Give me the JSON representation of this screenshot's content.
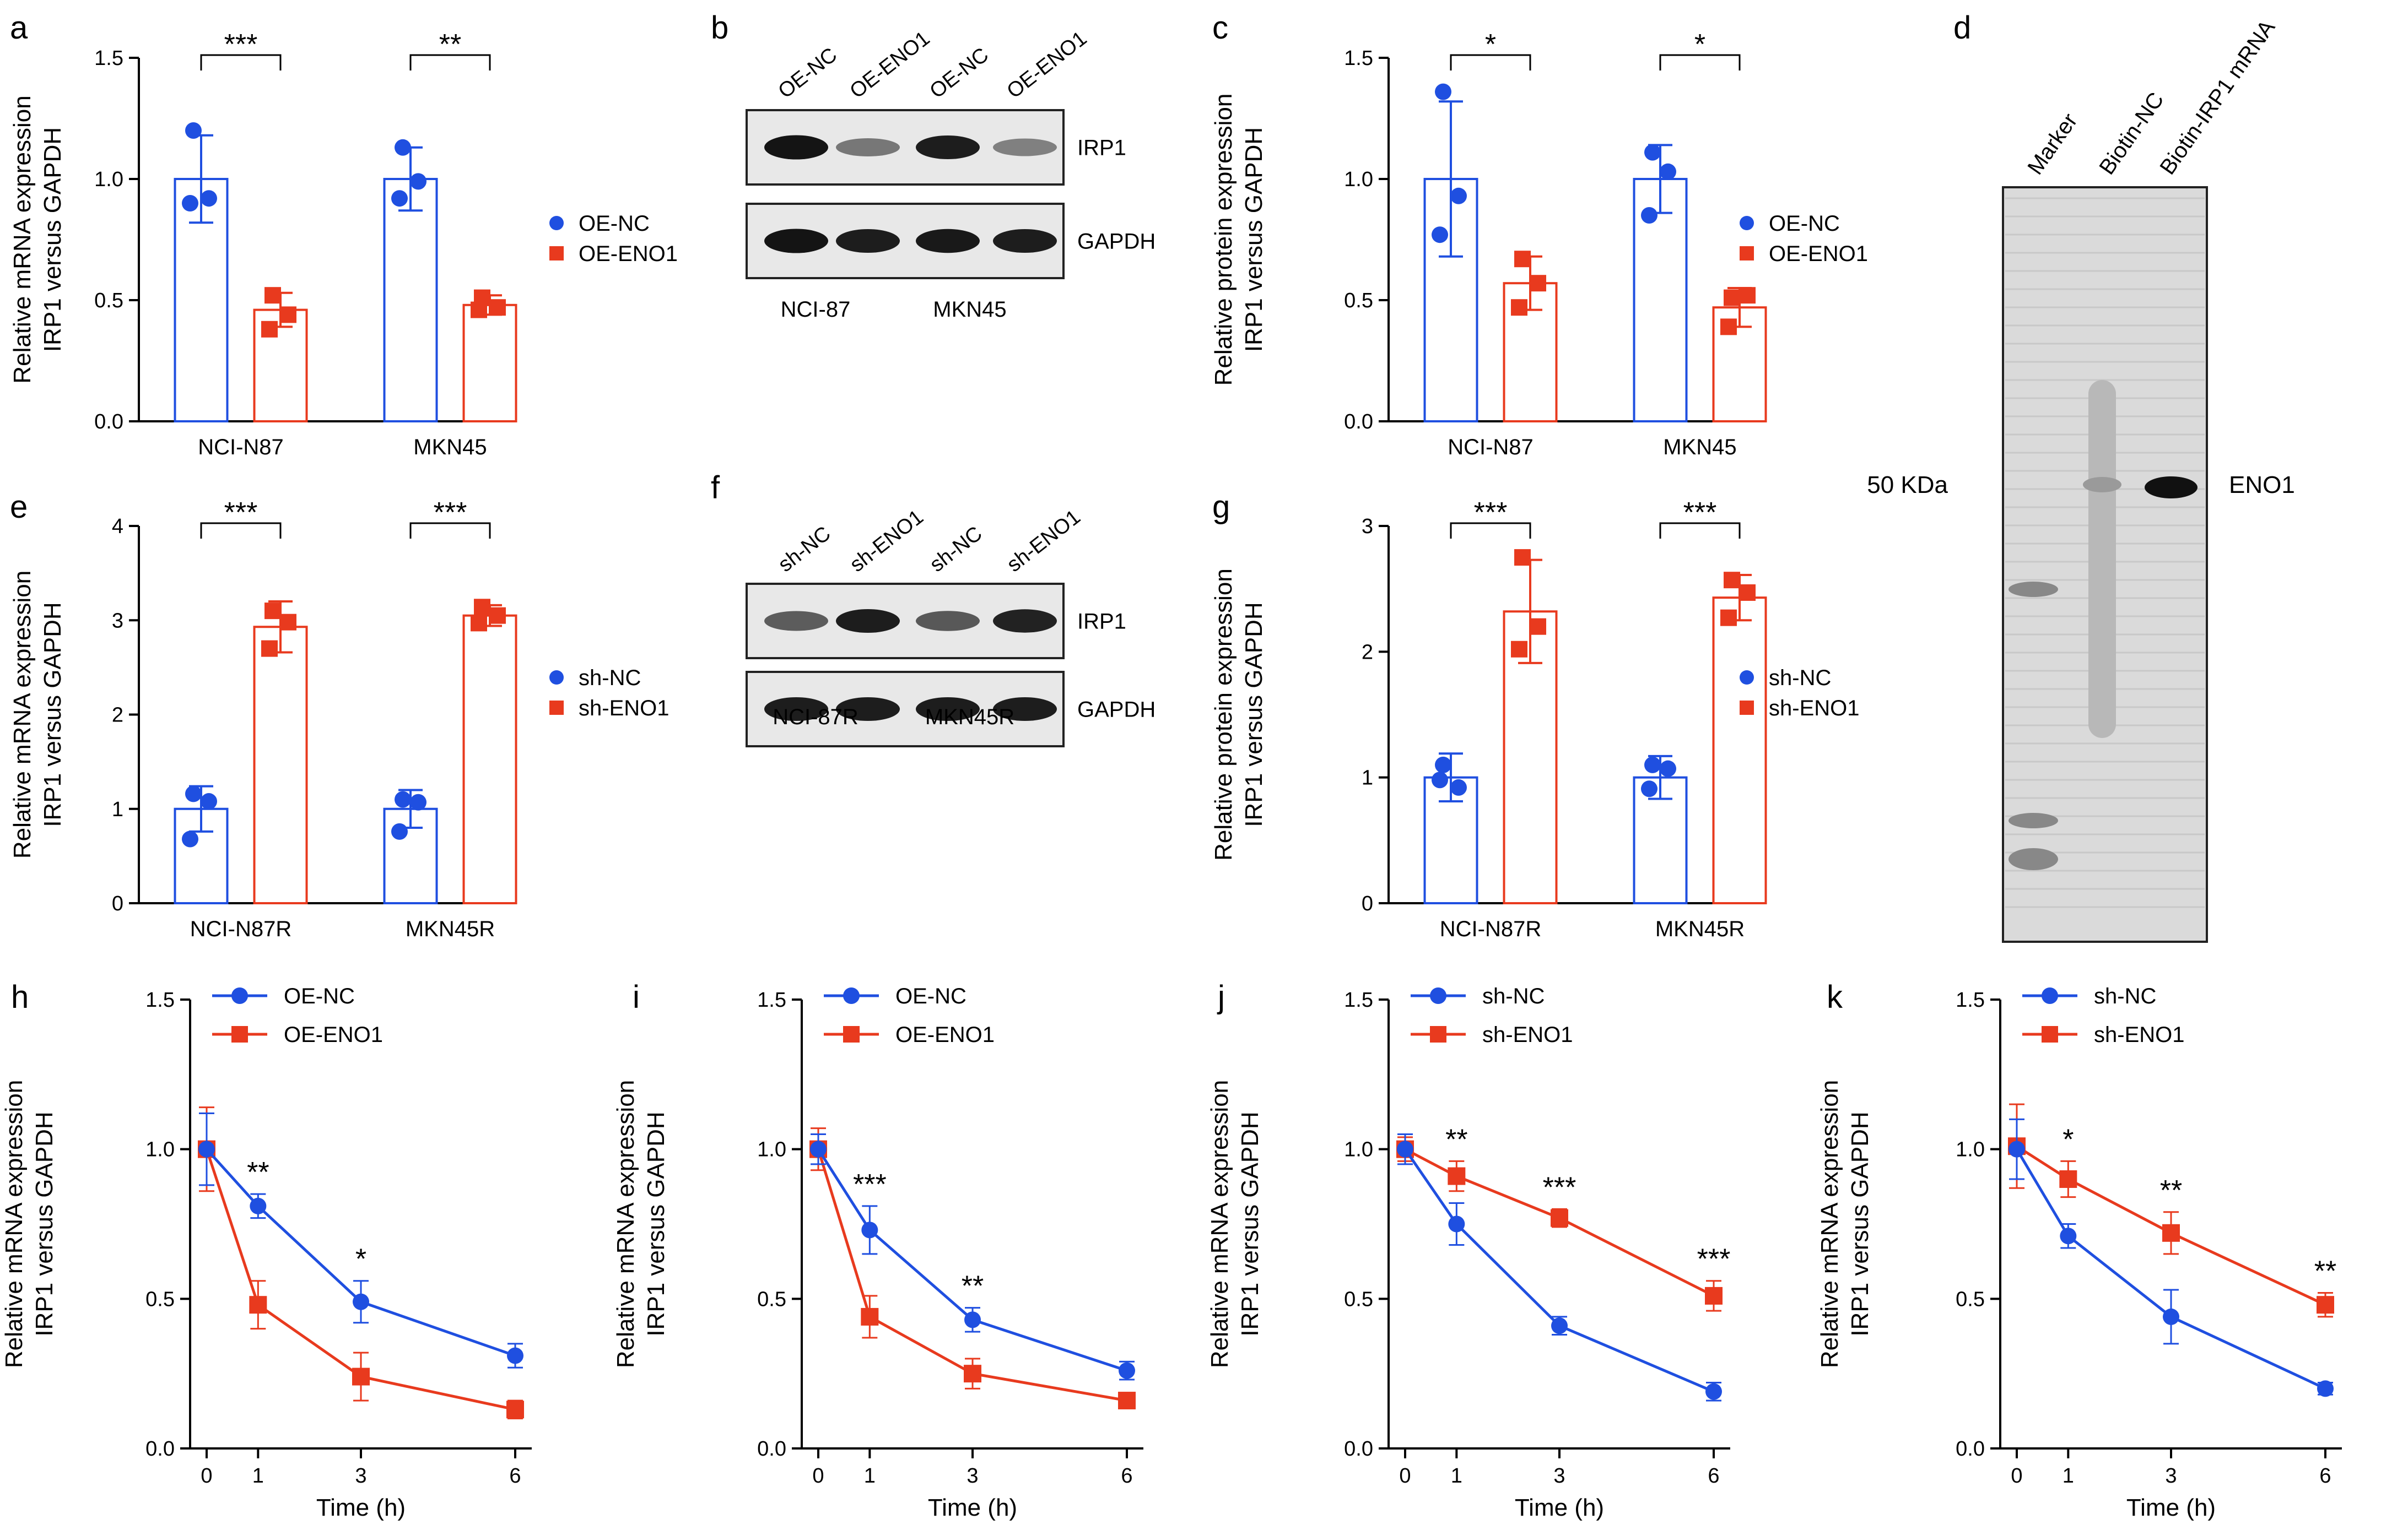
{
  "colors": {
    "blue": "#1f4fe0",
    "red": "#e83a1e",
    "axis": "#000000"
  },
  "panel_a": {
    "letter": "a",
    "chart_data": {
      "type": "bar",
      "ylabel": [
        "Relative mRNA expression",
        "IRP1 versus GAPDH"
      ],
      "ylim": [
        0,
        1.5
      ],
      "yticks": [
        "0.0",
        "0.5",
        "1.0",
        "1.5"
      ],
      "tick_values": [
        0,
        0.5,
        1.0,
        1.5
      ],
      "categories": [
        "NCI-N87",
        "MKN45"
      ],
      "series": [
        {
          "name": "OE-NC",
          "values": [
            1.0,
            1.0
          ],
          "err": [
            0.18,
            0.13
          ],
          "points": [
            [
              1.2,
              0.9,
              0.92
            ],
            [
              1.13,
              0.92,
              0.99
            ]
          ]
        },
        {
          "name": "OE-ENO1",
          "values": [
            0.46,
            0.48
          ],
          "err": [
            0.07,
            0.04
          ],
          "points": [
            [
              0.52,
              0.38,
              0.44
            ],
            [
              0.51,
              0.46,
              0.47
            ]
          ]
        }
      ],
      "significance": [
        "***",
        "**"
      ]
    }
  },
  "panel_c": {
    "letter": "c",
    "chart_data": {
      "type": "bar",
      "ylabel": [
        "Relative protein expression",
        "IRP1 versus GAPDH"
      ],
      "ylim": [
        0,
        1.5
      ],
      "yticks": [
        "0.0",
        "0.5",
        "1.0",
        "1.5"
      ],
      "tick_values": [
        0,
        0.5,
        1.0,
        1.5
      ],
      "categories": [
        "NCI-N87",
        "MKN45"
      ],
      "series": [
        {
          "name": "OE-NC",
          "values": [
            1.0,
            1.0
          ],
          "err": [
            0.32,
            0.14
          ],
          "points": [
            [
              1.36,
              0.77,
              0.93
            ],
            [
              1.11,
              0.85,
              1.03
            ]
          ]
        },
        {
          "name": "OE-ENO1",
          "values": [
            0.57,
            0.47
          ],
          "err": [
            0.11,
            0.08
          ],
          "points": [
            [
              0.67,
              0.47,
              0.57
            ],
            [
              0.51,
              0.39,
              0.52
            ]
          ]
        }
      ],
      "significance": [
        "*",
        "*"
      ]
    }
  },
  "panel_e": {
    "letter": "e",
    "chart_data": {
      "type": "bar",
      "ylabel": [
        "Relative mRNA expression",
        "IRP1 versus GAPDH"
      ],
      "ylim": [
        0,
        4
      ],
      "yticks": [
        "0",
        "1",
        "2",
        "3",
        "4"
      ],
      "tick_values": [
        0,
        1,
        2,
        3,
        4
      ],
      "categories": [
        "NCI-N87R",
        "MKN45R"
      ],
      "series": [
        {
          "name": "sh-NC",
          "values": [
            1.0,
            1.0
          ],
          "err": [
            0.24,
            0.2
          ],
          "points": [
            [
              1.16,
              0.68,
              1.08
            ],
            [
              1.1,
              0.76,
              1.07
            ]
          ]
        },
        {
          "name": "sh-ENO1",
          "values": [
            2.93,
            3.05
          ],
          "err": [
            0.27,
            0.11
          ],
          "points": [
            [
              3.1,
              2.7,
              2.98
            ],
            [
              3.14,
              2.97,
              3.05
            ]
          ]
        }
      ],
      "significance": [
        "***",
        "***"
      ]
    }
  },
  "panel_g": {
    "letter": "g",
    "chart_data": {
      "type": "bar",
      "ylabel": [
        "Relative protein expression",
        "IRP1 versus GAPDH"
      ],
      "ylim": [
        0,
        3
      ],
      "yticks": [
        "0",
        "1",
        "2",
        "3"
      ],
      "tick_values": [
        0,
        1,
        2,
        3
      ],
      "categories": [
        "NCI-N87R",
        "MKN45R"
      ],
      "series": [
        {
          "name": "sh-NC",
          "values": [
            1.0,
            1.0
          ],
          "err": [
            0.19,
            0.17
          ],
          "points": [
            [
              1.1,
              0.98,
              0.92
            ],
            [
              1.1,
              0.91,
              1.07
            ]
          ]
        },
        {
          "name": "sh-ENO1",
          "values": [
            2.32,
            2.43
          ],
          "err": [
            0.41,
            0.18
          ],
          "points": [
            [
              2.75,
              2.02,
              2.2
            ],
            [
              2.57,
              2.27,
              2.47
            ]
          ]
        }
      ],
      "significance": [
        "***",
        "***"
      ]
    }
  },
  "panel_h": {
    "letter": "h",
    "chart_data": {
      "type": "line",
      "ylabel": [
        "Relative mRNA expression",
        "IRP1 versus GAPDH"
      ],
      "xlabel": "Time (h)",
      "ylim": [
        0,
        1.5
      ],
      "yticks": [
        "0.0",
        "0.5",
        "1.0",
        "1.5"
      ],
      "tick_values": [
        0,
        0.5,
        1.0,
        1.5
      ],
      "x": [
        "0",
        "1",
        "3",
        "6"
      ],
      "series": [
        {
          "name": "OE-NC",
          "values": [
            1.0,
            0.81,
            0.49,
            0.31
          ],
          "err": [
            0.12,
            0.04,
            0.07,
            0.04
          ]
        },
        {
          "name": "OE-ENO1",
          "values": [
            1.0,
            0.48,
            0.24,
            0.13
          ],
          "err": [
            0.14,
            0.08,
            0.08,
            0.03
          ]
        }
      ],
      "significance": [
        "",
        "**",
        "*",
        ""
      ]
    }
  },
  "panel_i": {
    "letter": "i",
    "chart_data": {
      "type": "line",
      "ylabel": [
        "Relative mRNA expression",
        "IRP1 versus GAPDH"
      ],
      "xlabel": "Time (h)",
      "ylim": [
        0,
        1.5
      ],
      "yticks": [
        "0.0",
        "0.5",
        "1.0",
        "1.5"
      ],
      "tick_values": [
        0,
        0.5,
        1.0,
        1.5
      ],
      "x": [
        "0",
        "1",
        "3",
        "6"
      ],
      "series": [
        {
          "name": "OE-NC",
          "values": [
            1.0,
            0.73,
            0.43,
            0.26
          ],
          "err": [
            0.05,
            0.08,
            0.04,
            0.03
          ]
        },
        {
          "name": "OE-ENO1",
          "values": [
            1.0,
            0.44,
            0.25,
            0.16
          ],
          "err": [
            0.07,
            0.07,
            0.05,
            0.02
          ]
        }
      ],
      "significance": [
        "",
        "***",
        "**",
        ""
      ]
    }
  },
  "panel_j": {
    "letter": "j",
    "chart_data": {
      "type": "line",
      "ylabel": [
        "Relative mRNA expression",
        "IRP1 versus GAPDH"
      ],
      "xlabel": "Time (h)",
      "ylim": [
        0,
        1.5
      ],
      "yticks": [
        "0.0",
        "0.5",
        "1.0",
        "1.5"
      ],
      "tick_values": [
        0,
        0.5,
        1.0,
        1.5
      ],
      "x": [
        "0",
        "1",
        "3",
        "6"
      ],
      "series": [
        {
          "name": "sh-NC",
          "values": [
            1.0,
            0.75,
            0.41,
            0.19
          ],
          "err": [
            0.05,
            0.07,
            0.03,
            0.03
          ]
        },
        {
          "name": "sh-ENO1",
          "values": [
            1.0,
            0.91,
            0.77,
            0.51
          ],
          "err": [
            0.04,
            0.05,
            0.03,
            0.05
          ]
        }
      ],
      "significance": [
        "",
        "**",
        "***",
        "***"
      ]
    }
  },
  "panel_k": {
    "letter": "k",
    "chart_data": {
      "type": "line",
      "ylabel": [
        "Relative mRNA expression",
        "IRP1 versus GAPDH"
      ],
      "xlabel": "Time (h)",
      "ylim": [
        0,
        1.5
      ],
      "yticks": [
        "0.0",
        "0.5",
        "1.0",
        "1.5"
      ],
      "tick_values": [
        0,
        0.5,
        1.0,
        1.5
      ],
      "x": [
        "0",
        "1",
        "3",
        "6"
      ],
      "series": [
        {
          "name": "sh-NC",
          "values": [
            1.0,
            0.71,
            0.44,
            0.2
          ],
          "err": [
            0.1,
            0.04,
            0.09,
            0.02
          ]
        },
        {
          "name": "sh-ENO1",
          "values": [
            1.01,
            0.9,
            0.72,
            0.48
          ],
          "err": [
            0.14,
            0.06,
            0.07,
            0.04
          ]
        }
      ],
      "significance": [
        "",
        "*",
        "**",
        "**"
      ]
    }
  },
  "panel_b": {
    "letter": "b",
    "lanes": [
      "OE-NC",
      "OE-ENO1",
      "OE-NC",
      "OE-ENO1"
    ],
    "bands": [
      "IRP1",
      "GAPDH"
    ],
    "groups": [
      "NCI-87",
      "MKN45"
    ],
    "band_intensity": [
      [
        1.0,
        0.45,
        0.95,
        0.4
      ],
      [
        1.0,
        0.95,
        0.97,
        0.95
      ]
    ]
  },
  "panel_f": {
    "letter": "f",
    "lanes": [
      "sh-NC",
      "sh-ENO1",
      "sh-NC",
      "sh-ENO1"
    ],
    "bands": [
      "IRP1",
      "GAPDH"
    ],
    "groups": [
      "NCI-87R",
      "MKN45R"
    ],
    "band_intensity": [
      [
        0.6,
        0.95,
        0.62,
        0.92
      ],
      [
        0.95,
        0.95,
        0.95,
        0.95
      ]
    ]
  },
  "panel_d": {
    "letter": "d",
    "lanes": [
      "Marker",
      "Biotin-NC",
      "Biotin-IRP1 mRNA"
    ],
    "marker_label": "50 KDa",
    "band_label": "ENO1"
  }
}
